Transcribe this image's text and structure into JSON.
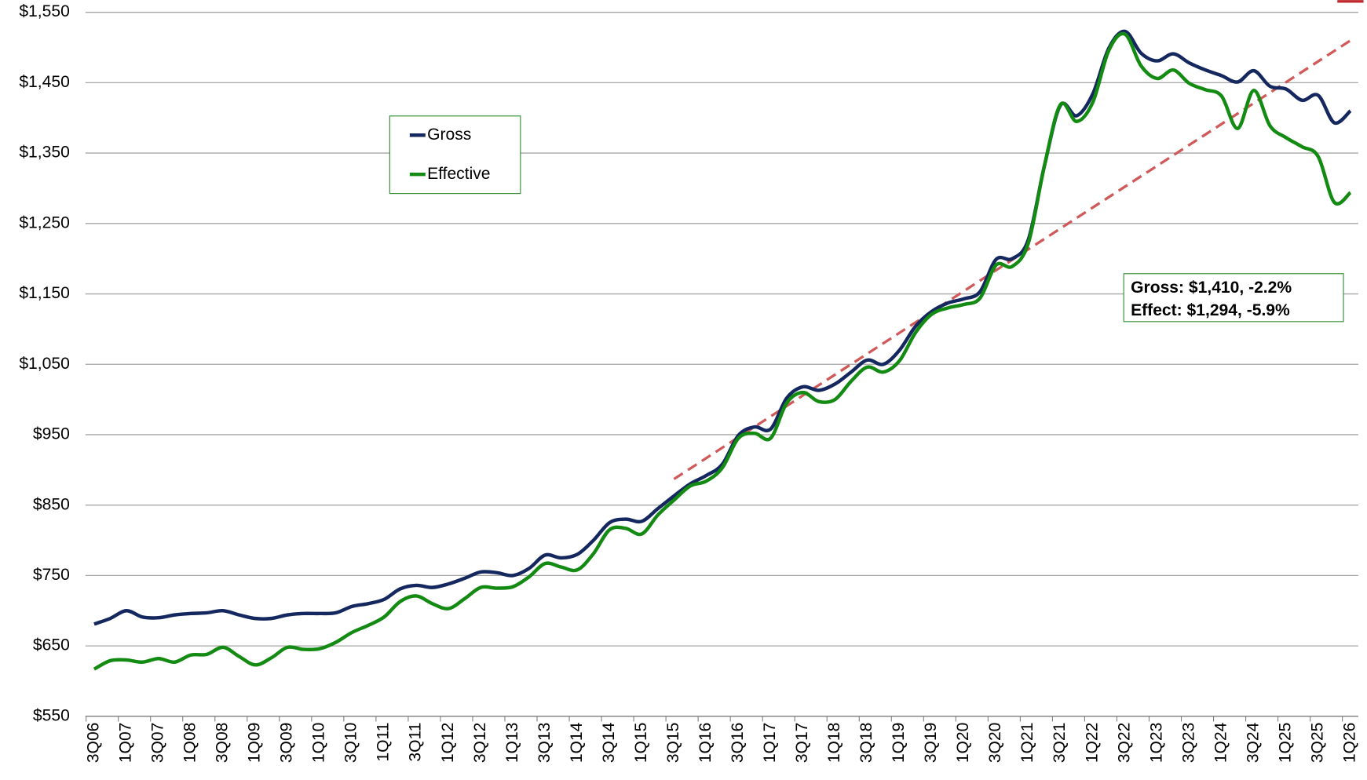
{
  "chart_data": {
    "type": "line",
    "categories": [
      "3Q06",
      null,
      "1Q07",
      null,
      "3Q07",
      null,
      "1Q08",
      null,
      "3Q08",
      null,
      "1Q09",
      null,
      "3Q09",
      null,
      "1Q10",
      null,
      "3Q10",
      null,
      "1Q11",
      null,
      "3Q11",
      null,
      "1Q12",
      null,
      "3Q12",
      null,
      "1Q13",
      null,
      "3Q13",
      null,
      "1Q14",
      null,
      "3Q14",
      null,
      "1Q15",
      null,
      "3Q15",
      null,
      "1Q16",
      null,
      "3Q16",
      null,
      "1Q17",
      null,
      "3Q17",
      null,
      "1Q18",
      null,
      "3Q18",
      null,
      "1Q19",
      null,
      "3Q19",
      null,
      "1Q20",
      null,
      "3Q20",
      null,
      "1Q21",
      null,
      "3Q21",
      null,
      "1Q22",
      null,
      "3Q22",
      null,
      "1Q23",
      null,
      "3Q23",
      null,
      "1Q24",
      null,
      "3Q24",
      null,
      "1Q25",
      null,
      "3Q25",
      null,
      "1Q26"
    ],
    "series": [
      {
        "name": "Gross",
        "color": "#14275e",
        "values": [
          681,
          689,
          700,
          691,
          690,
          694,
          696,
          697,
          700,
          694,
          689,
          689,
          694,
          696,
          696,
          697,
          706,
          710,
          716,
          731,
          736,
          733,
          738,
          746,
          755,
          754,
          750,
          760,
          779,
          775,
          780,
          800,
          825,
          830,
          827,
          845,
          863,
          880,
          892,
          908,
          949,
          961,
          958,
          1002,
          1018,
          1013,
          1022,
          1039,
          1056,
          1050,
          1070,
          1104,
          1125,
          1137,
          1143,
          1153,
          1199,
          1200,
          1227,
          1332,
          1418,
          1403,
          1434,
          1499,
          1523,
          1492,
          1481,
          1491,
          1478,
          1468,
          1460,
          1451,
          1467,
          1445,
          1441,
          1425,
          1432,
          1393,
          1410
        ]
      },
      {
        "name": "Effective",
        "color": "#138a12",
        "values": [
          617,
          629,
          630,
          627,
          632,
          627,
          637,
          638,
          648,
          635,
          623,
          633,
          648,
          645,
          646,
          655,
          669,
          679,
          691,
          713,
          721,
          710,
          703,
          717,
          733,
          732,
          734,
          748,
          767,
          762,
          758,
          781,
          815,
          817,
          809,
          836,
          857,
          877,
          884,
          903,
          945,
          952,
          945,
          995,
          1010,
          997,
          1000,
          1026,
          1046,
          1039,
          1055,
          1095,
          1121,
          1130,
          1135,
          1144,
          1191,
          1189,
          1222,
          1332,
          1419,
          1395,
          1422,
          1496,
          1519,
          1474,
          1456,
          1468,
          1449,
          1440,
          1431,
          1385,
          1439,
          1389,
          1372,
          1359,
          1345,
          1280,
          1294
        ]
      }
    ],
    "trendline": {
      "start": "3Q15",
      "end": "1Q26",
      "values": [
        887,
        1510
      ],
      "color": "#d05a5a",
      "dashed": true
    },
    "annotations": [
      "Gross: $1,410, -2.2%",
      "Effect: $1,294, -5.9%"
    ],
    "ylim": [
      550,
      1550
    ],
    "yticks": [
      {
        "value": 550,
        "label": "$550"
      },
      {
        "value": 650,
        "label": "$650"
      },
      {
        "value": 750,
        "label": "$750"
      },
      {
        "value": 850,
        "label": "$850"
      },
      {
        "value": 950,
        "label": "$950"
      },
      {
        "value": 1050,
        "label": "$1,050"
      },
      {
        "value": 1150,
        "label": "$1,150"
      },
      {
        "value": 1250,
        "label": "$1,250"
      },
      {
        "value": 1350,
        "label": "$1,350"
      },
      {
        "value": 1450,
        "label": "$1,450"
      },
      {
        "value": 1550,
        "label": "$1,550"
      }
    ],
    "grid": true,
    "legend": "upper-left"
  }
}
